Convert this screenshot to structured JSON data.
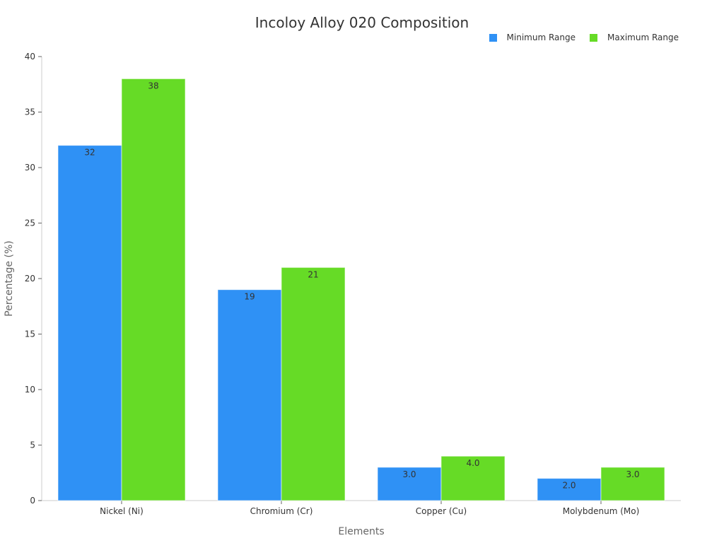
{
  "chart_data": {
    "type": "bar",
    "title": "Incoloy Alloy 020 Composition",
    "xlabel": "Elements",
    "ylabel": "Percentage (%)",
    "categories": [
      "Nickel (Ni)",
      "Chromium (Cr)",
      "Copper (Cu)",
      "Molybdenum (Mo)"
    ],
    "series": [
      {
        "name": "Minimum Range",
        "color": "#2f91f5",
        "values": [
          32,
          19,
          3.0,
          2.0
        ],
        "labels": [
          "32",
          "19",
          "3.0",
          "2.0"
        ]
      },
      {
        "name": "Maximum Range",
        "color": "#66db26",
        "values": [
          38,
          21,
          4.0,
          3.0
        ],
        "labels": [
          "38",
          "21",
          "4.0",
          "3.0"
        ]
      }
    ],
    "ylim": [
      0,
      40
    ],
    "yticks": [
      0,
      5,
      10,
      15,
      20,
      25,
      30,
      35,
      40
    ],
    "grid": false,
    "legend_position": "top-right"
  }
}
